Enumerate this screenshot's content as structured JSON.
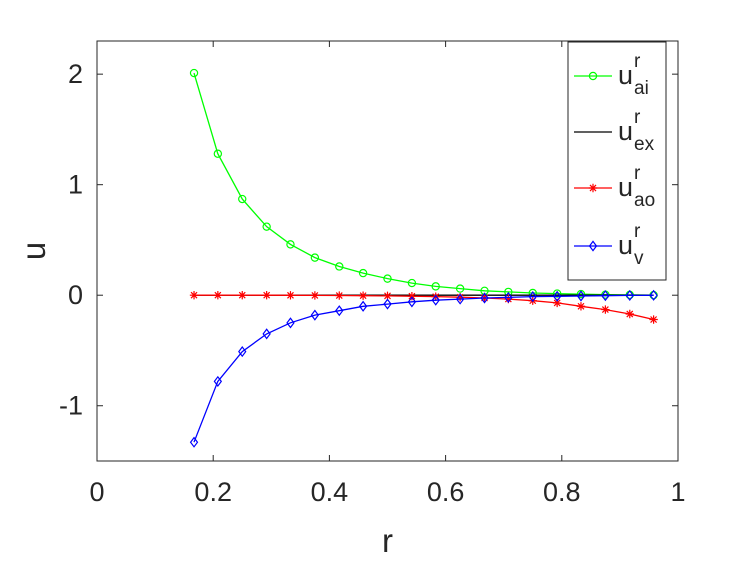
{
  "chart_data": {
    "type": "line",
    "xlabel": "r",
    "ylabel": "u",
    "xlim": [
      0,
      1
    ],
    "ylim": [
      -1.5,
      2.3
    ],
    "xticks": [
      0,
      0.2,
      0.4,
      0.6,
      0.8,
      1
    ],
    "xtick_labels": [
      "0",
      "0.2",
      "0.4",
      "0.6",
      "0.8",
      "1"
    ],
    "yticks": [
      -1,
      0,
      1,
      2
    ],
    "ytick_labels": [
      "-1",
      "0",
      "1",
      "2"
    ],
    "grid": false,
    "legend_position": "top-right",
    "series": [
      {
        "name": "u",
        "superscript": "r",
        "subscript": "ai",
        "color": "#00ff00",
        "marker": "circle",
        "x": [
          0.167,
          0.208,
          0.25,
          0.292,
          0.333,
          0.375,
          0.417,
          0.458,
          0.5,
          0.542,
          0.583,
          0.625,
          0.667,
          0.708,
          0.75,
          0.792,
          0.833,
          0.875,
          0.917,
          0.958
        ],
        "y": [
          2.01,
          1.28,
          0.87,
          0.62,
          0.46,
          0.34,
          0.26,
          0.2,
          0.15,
          0.11,
          0.08,
          0.06,
          0.04,
          0.03,
          0.02,
          0.015,
          0.01,
          0.005,
          0.003,
          0.001
        ]
      },
      {
        "name": "u",
        "superscript": "r",
        "subscript": "ex",
        "color": "#000000",
        "marker": "none",
        "x": [
          0.167,
          0.208,
          0.25,
          0.292,
          0.333,
          0.375,
          0.417,
          0.458,
          0.5,
          0.542,
          0.583,
          0.625,
          0.667,
          0.708,
          0.75,
          0.792,
          0.833,
          0.875,
          0.917,
          0.958
        ],
        "y": [
          0,
          0,
          0,
          0,
          0,
          0,
          0,
          0,
          0,
          0,
          0,
          0,
          0,
          0,
          0,
          0,
          0,
          0,
          0,
          0
        ]
      },
      {
        "name": "u",
        "superscript": "r",
        "subscript": "ao",
        "color": "#ff0000",
        "marker": "asterisk",
        "x": [
          0.167,
          0.208,
          0.25,
          0.292,
          0.333,
          0.375,
          0.417,
          0.458,
          0.5,
          0.542,
          0.583,
          0.625,
          0.667,
          0.708,
          0.75,
          0.792,
          0.833,
          0.875,
          0.917,
          0.958
        ],
        "y": [
          0,
          0,
          0,
          0,
          -0.001,
          -0.002,
          -0.003,
          -0.004,
          -0.006,
          -0.009,
          -0.013,
          -0.018,
          -0.025,
          -0.035,
          -0.05,
          -0.07,
          -0.1,
          -0.13,
          -0.17,
          -0.22
        ]
      },
      {
        "name": "u",
        "superscript": "r",
        "subscript": "v",
        "color": "#0000ff",
        "marker": "diamond",
        "x": [
          0.167,
          0.208,
          0.25,
          0.292,
          0.333,
          0.375,
          0.417,
          0.458,
          0.5,
          0.542,
          0.583,
          0.625,
          0.667,
          0.708,
          0.75,
          0.792,
          0.833,
          0.875,
          0.917,
          0.958
        ],
        "y": [
          -1.33,
          -0.78,
          -0.51,
          -0.35,
          -0.25,
          -0.18,
          -0.14,
          -0.1,
          -0.08,
          -0.06,
          -0.045,
          -0.035,
          -0.025,
          -0.02,
          -0.013,
          -0.01,
          -0.007,
          -0.004,
          -0.002,
          -0.001
        ]
      }
    ]
  }
}
